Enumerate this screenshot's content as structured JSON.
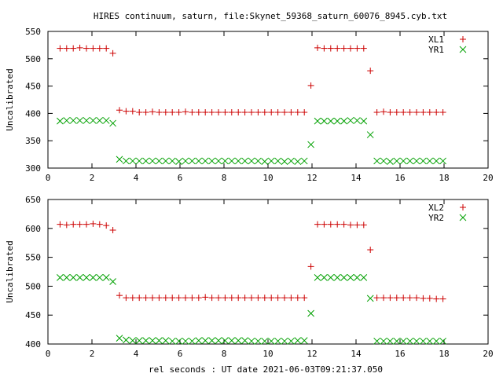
{
  "figure": {
    "title": "HIRES continuum, saturn, file:Skynet_59368_saturn_60076_8945.cyb.txt",
    "xlabel": "rel seconds : UT date 2021-06-03T09:21:37.050"
  },
  "chart_data": [
    {
      "type": "scatter",
      "ylabel": "Uncalibrated",
      "xlim": [
        0,
        20
      ],
      "ylim": [
        300,
        550
      ],
      "xticks": [
        0,
        2,
        4,
        6,
        8,
        10,
        12,
        14,
        16,
        18,
        20
      ],
      "yticks": [
        300,
        350,
        400,
        450,
        500,
        550
      ],
      "legend": "top-right",
      "series": [
        {
          "name": "XL1",
          "marker": "+",
          "color": "#cc0000",
          "x": [
            0.55,
            0.85,
            1.15,
            1.45,
            1.75,
            2.05,
            2.35,
            2.65,
            2.95,
            3.25,
            3.55,
            3.85,
            4.15,
            4.45,
            4.75,
            5.05,
            5.35,
            5.65,
            5.95,
            6.25,
            6.55,
            6.85,
            7.15,
            7.45,
            7.75,
            8.05,
            8.35,
            8.65,
            8.95,
            9.25,
            9.55,
            9.85,
            10.15,
            10.45,
            10.75,
            11.05,
            11.35,
            11.65,
            11.95,
            12.25,
            12.55,
            12.85,
            13.15,
            13.45,
            13.75,
            14.05,
            14.35,
            14.65,
            14.95,
            15.25,
            15.55,
            15.85,
            16.15,
            16.45,
            16.75,
            17.05,
            17.35,
            17.65,
            17.95
          ],
          "y": [
            519,
            519,
            519,
            520,
            519,
            519,
            519,
            519,
            510,
            406,
            404,
            404,
            402,
            402,
            403,
            402,
            402,
            402,
            402,
            403,
            402,
            402,
            402,
            402,
            402,
            402,
            402,
            402,
            402,
            402,
            402,
            402,
            402,
            402,
            402,
            402,
            402,
            402,
            451,
            520,
            519,
            519,
            519,
            519,
            519,
            519,
            519,
            478,
            402,
            403,
            402,
            402,
            402,
            402,
            402,
            402,
            402,
            402,
            402
          ]
        },
        {
          "name": "YR1",
          "marker": "x",
          "color": "#00a000",
          "x": [
            0.55,
            0.85,
            1.15,
            1.45,
            1.75,
            2.05,
            2.35,
            2.65,
            2.95,
            3.25,
            3.55,
            3.85,
            4.15,
            4.45,
            4.75,
            5.05,
            5.35,
            5.65,
            5.95,
            6.25,
            6.55,
            6.85,
            7.15,
            7.45,
            7.75,
            8.05,
            8.35,
            8.65,
            8.95,
            9.25,
            9.55,
            9.85,
            10.15,
            10.45,
            10.75,
            11.05,
            11.35,
            11.65,
            11.95,
            12.25,
            12.55,
            12.85,
            13.15,
            13.45,
            13.75,
            14.05,
            14.35,
            14.65,
            14.95,
            15.25,
            15.55,
            15.85,
            16.15,
            16.45,
            16.75,
            17.05,
            17.35,
            17.65,
            17.95
          ],
          "y": [
            386,
            387,
            387,
            387,
            387,
            387,
            387,
            387,
            382,
            316,
            313,
            313,
            313,
            313,
            313,
            313,
            313,
            313,
            312,
            313,
            313,
            313,
            313,
            313,
            313,
            313,
            313,
            313,
            313,
            313,
            313,
            312,
            313,
            313,
            312,
            313,
            312,
            313,
            343,
            386,
            386,
            386,
            386,
            386,
            387,
            387,
            386,
            361,
            313,
            313,
            312,
            313,
            313,
            313,
            313,
            313,
            313,
            313,
            313
          ]
        }
      ]
    },
    {
      "type": "scatter",
      "ylabel": "Uncalibrated",
      "xlim": [
        0,
        20
      ],
      "ylim": [
        400,
        650
      ],
      "xticks": [
        0,
        2,
        4,
        6,
        8,
        10,
        12,
        14,
        16,
        18,
        20
      ],
      "yticks": [
        400,
        450,
        500,
        550,
        600,
        650
      ],
      "legend": "top-right",
      "series": [
        {
          "name": "XL2",
          "marker": "+",
          "color": "#cc0000",
          "x": [
            0.55,
            0.85,
            1.15,
            1.45,
            1.75,
            2.05,
            2.35,
            2.65,
            2.95,
            3.25,
            3.55,
            3.85,
            4.15,
            4.45,
            4.75,
            5.05,
            5.35,
            5.65,
            5.95,
            6.25,
            6.55,
            6.85,
            7.15,
            7.45,
            7.75,
            8.05,
            8.35,
            8.65,
            8.95,
            9.25,
            9.55,
            9.85,
            10.15,
            10.45,
            10.75,
            11.05,
            11.35,
            11.65,
            11.95,
            12.25,
            12.55,
            12.85,
            13.15,
            13.45,
            13.75,
            14.05,
            14.35,
            14.65,
            14.95,
            15.25,
            15.55,
            15.85,
            16.15,
            16.45,
            16.75,
            17.05,
            17.35,
            17.65,
            17.95
          ],
          "y": [
            607,
            606,
            607,
            607,
            607,
            608,
            607,
            605,
            597,
            484,
            480,
            480,
            480,
            480,
            480,
            480,
            480,
            480,
            480,
            480,
            480,
            480,
            481,
            480,
            480,
            480,
            480,
            480,
            480,
            480,
            480,
            480,
            480,
            480,
            480,
            480,
            480,
            480,
            534,
            607,
            607,
            607,
            607,
            607,
            606,
            606,
            606,
            563,
            480,
            480,
            480,
            480,
            480,
            480,
            480,
            479,
            479,
            478,
            478
          ]
        },
        {
          "name": "YR2",
          "marker": "x",
          "color": "#00a000",
          "x": [
            0.55,
            0.85,
            1.15,
            1.45,
            1.75,
            2.05,
            2.35,
            2.65,
            2.95,
            3.25,
            3.55,
            3.85,
            4.15,
            4.45,
            4.75,
            5.05,
            5.35,
            5.65,
            5.95,
            6.25,
            6.55,
            6.85,
            7.15,
            7.45,
            7.75,
            8.05,
            8.35,
            8.65,
            8.95,
            9.25,
            9.55,
            9.85,
            10.15,
            10.45,
            10.75,
            11.05,
            11.35,
            11.65,
            11.95,
            12.25,
            12.55,
            12.85,
            13.15,
            13.45,
            13.75,
            14.05,
            14.35,
            14.65,
            14.95,
            15.25,
            15.55,
            15.85,
            16.15,
            16.45,
            16.75,
            17.05,
            17.35,
            17.65,
            17.95
          ],
          "y": [
            515,
            515,
            515,
            515,
            515,
            515,
            515,
            515,
            508,
            410,
            407,
            406,
            406,
            406,
            406,
            406,
            406,
            405,
            405,
            405,
            405,
            406,
            406,
            406,
            406,
            406,
            406,
            406,
            406,
            405,
            405,
            405,
            405,
            405,
            405,
            405,
            406,
            406,
            453,
            515,
            515,
            515,
            515,
            515,
            515,
            515,
            515,
            479,
            405,
            405,
            405,
            405,
            405,
            405,
            405,
            405,
            405,
            405,
            405
          ]
        }
      ]
    }
  ]
}
